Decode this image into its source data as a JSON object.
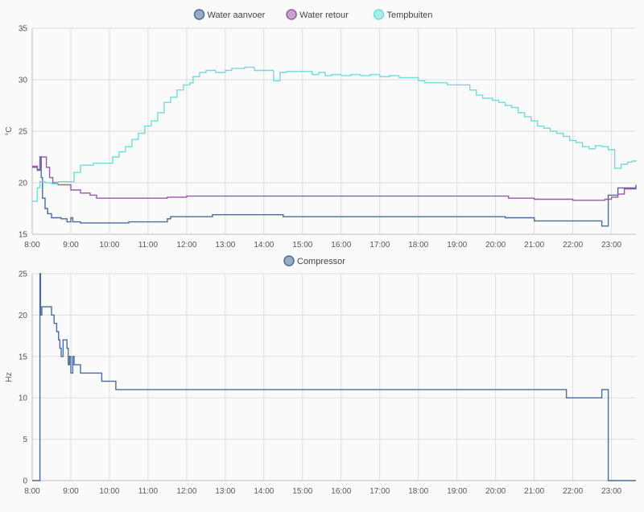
{
  "chart_data": [
    {
      "type": "line",
      "step": true,
      "ylabel": "°C",
      "ylim": [
        15,
        35
      ],
      "yticks": [
        "15",
        "20",
        "25",
        "30",
        "35"
      ],
      "xlim": [
        "08:00",
        "23:38"
      ],
      "xticks": [
        "8:00",
        "9:00",
        "10:00",
        "11:00",
        "12:00",
        "13:00",
        "14:00",
        "15:00",
        "16:00",
        "17:00",
        "18:00",
        "19:00",
        "20:00",
        "21:00",
        "22:00",
        "23:00"
      ],
      "grid": true,
      "legend_position": "top-center",
      "series": [
        {
          "name": "Water aanvoer",
          "color": "#4a6c96",
          "points": [
            [
              "08:00",
              21.5
            ],
            [
              "08:08",
              21.2
            ],
            [
              "08:12",
              22.5
            ],
            [
              "08:14",
              20.5
            ],
            [
              "08:16",
              18.5
            ],
            [
              "08:20",
              17.5
            ],
            [
              "08:24",
              17.0
            ],
            [
              "08:30",
              16.6
            ],
            [
              "08:45",
              16.5
            ],
            [
              "08:54",
              16.2
            ],
            [
              "09:00",
              16.6
            ],
            [
              "09:03",
              16.2
            ],
            [
              "09:15",
              16.1
            ],
            [
              "10:30",
              16.2
            ],
            [
              "11:30",
              16.5
            ],
            [
              "11:35",
              16.7
            ],
            [
              "12:00",
              16.7
            ],
            [
              "12:40",
              16.9
            ],
            [
              "13:00",
              16.9
            ],
            [
              "14:00",
              16.9
            ],
            [
              "14:30",
              16.7
            ],
            [
              "16:00",
              16.7
            ],
            [
              "19:30",
              16.7
            ],
            [
              "20:15",
              16.6
            ],
            [
              "21:00",
              16.3
            ],
            [
              "22:00",
              16.3
            ],
            [
              "22:45",
              15.8
            ],
            [
              "22:55",
              18.8
            ],
            [
              "23:10",
              19.5
            ],
            [
              "23:38",
              19.8
            ]
          ]
        },
        {
          "name": "Water retour",
          "color": "#9b59a6",
          "points": [
            [
              "08:00",
              21.6
            ],
            [
              "08:08",
              21.3
            ],
            [
              "08:12",
              22.5
            ],
            [
              "08:18",
              22.5
            ],
            [
              "08:22",
              21.5
            ],
            [
              "08:27",
              20.5
            ],
            [
              "08:32",
              20.0
            ],
            [
              "08:40",
              19.8
            ],
            [
              "09:00",
              19.3
            ],
            [
              "09:15",
              19.0
            ],
            [
              "09:30",
              18.8
            ],
            [
              "09:40",
              18.5
            ],
            [
              "10:30",
              18.5
            ],
            [
              "11:00",
              18.5
            ],
            [
              "11:30",
              18.6
            ],
            [
              "12:00",
              18.7
            ],
            [
              "13:00",
              18.7
            ],
            [
              "20:00",
              18.7
            ],
            [
              "20:20",
              18.5
            ],
            [
              "21:00",
              18.4
            ],
            [
              "22:00",
              18.3
            ],
            [
              "22:50",
              18.4
            ],
            [
              "23:00",
              18.6
            ],
            [
              "23:10",
              18.9
            ],
            [
              "23:20",
              19.4
            ],
            [
              "23:38",
              19.6
            ]
          ]
        },
        {
          "name": "Tempbuiten",
          "color": "#72dcd8",
          "points": [
            [
              "08:00",
              18.2
            ],
            [
              "08:08",
              19.5
            ],
            [
              "08:12",
              20.1
            ],
            [
              "08:20",
              20.0
            ],
            [
              "08:30",
              19.9
            ],
            [
              "08:40",
              20.1
            ],
            [
              "08:50",
              20.1
            ],
            [
              "09:05",
              21.0
            ],
            [
              "09:15",
              21.7
            ],
            [
              "09:35",
              21.9
            ],
            [
              "09:55",
              21.9
            ],
            [
              "10:05",
              22.5
            ],
            [
              "10:15",
              23.0
            ],
            [
              "10:25",
              23.5
            ],
            [
              "10:35",
              24.2
            ],
            [
              "10:45",
              24.8
            ],
            [
              "10:55",
              25.5
            ],
            [
              "11:05",
              26.0
            ],
            [
              "11:15",
              26.8
            ],
            [
              "11:25",
              27.8
            ],
            [
              "11:35",
              28.3
            ],
            [
              "11:45",
              29.0
            ],
            [
              "11:55",
              29.5
            ],
            [
              "12:05",
              29.7
            ],
            [
              "12:10",
              30.3
            ],
            [
              "12:20",
              30.7
            ],
            [
              "12:30",
              30.9
            ],
            [
              "12:45",
              30.7
            ],
            [
              "13:00",
              30.9
            ],
            [
              "13:10",
              31.1
            ],
            [
              "13:20",
              31.1
            ],
            [
              "13:30",
              31.2
            ],
            [
              "13:45",
              30.9
            ],
            [
              "14:00",
              30.9
            ],
            [
              "14:15",
              29.9
            ],
            [
              "14:25",
              30.7
            ],
            [
              "14:35",
              30.8
            ],
            [
              "15:00",
              30.8
            ],
            [
              "15:15",
              30.5
            ],
            [
              "15:25",
              30.7
            ],
            [
              "15:35",
              30.4
            ],
            [
              "15:45",
              30.5
            ],
            [
              "16:00",
              30.4
            ],
            [
              "16:15",
              30.5
            ],
            [
              "16:30",
              30.4
            ],
            [
              "16:45",
              30.5
            ],
            [
              "17:00",
              30.3
            ],
            [
              "17:15",
              30.4
            ],
            [
              "17:30",
              30.2
            ],
            [
              "17:45",
              30.2
            ],
            [
              "18:00",
              29.9
            ],
            [
              "18:10",
              29.7
            ],
            [
              "18:30",
              29.7
            ],
            [
              "18:45",
              29.5
            ],
            [
              "19:00",
              29.5
            ],
            [
              "19:20",
              29.0
            ],
            [
              "19:30",
              28.5
            ],
            [
              "19:40",
              28.2
            ],
            [
              "19:55",
              28.0
            ],
            [
              "20:05",
              27.8
            ],
            [
              "20:15",
              27.5
            ],
            [
              "20:25",
              27.3
            ],
            [
              "20:35",
              26.8
            ],
            [
              "20:45",
              26.4
            ],
            [
              "20:55",
              26.0
            ],
            [
              "21:05",
              25.5
            ],
            [
              "21:15",
              25.3
            ],
            [
              "21:25",
              25.0
            ],
            [
              "21:35",
              24.8
            ],
            [
              "21:45",
              24.5
            ],
            [
              "21:55",
              24.1
            ],
            [
              "22:05",
              23.9
            ],
            [
              "22:15",
              23.5
            ],
            [
              "22:25",
              23.3
            ],
            [
              "22:35",
              23.6
            ],
            [
              "22:45",
              23.5
            ],
            [
              "22:55",
              23.2
            ],
            [
              "23:05",
              21.4
            ],
            [
              "23:15",
              21.8
            ],
            [
              "23:25",
              22.0
            ],
            [
              "23:32",
              22.1
            ],
            [
              "23:38",
              22.2
            ]
          ]
        }
      ]
    },
    {
      "type": "line",
      "step": true,
      "ylabel": "Hz",
      "ylim": [
        0,
        25
      ],
      "yticks": [
        "0",
        "5",
        "10",
        "15",
        "20",
        "25"
      ],
      "xlim": [
        "08:00",
        "23:38"
      ],
      "xticks": [
        "8:00",
        "9:00",
        "10:00",
        "11:00",
        "12:00",
        "13:00",
        "14:00",
        "15:00",
        "16:00",
        "17:00",
        "18:00",
        "19:00",
        "20:00",
        "21:00",
        "22:00",
        "23:00"
      ],
      "grid": true,
      "legend_position": "top-center",
      "series": [
        {
          "name": "Compressor",
          "color": "#4a6c96",
          "points": [
            [
              "08:00",
              0
            ],
            [
              "08:12",
              0
            ],
            [
              "08:12",
              25
            ],
            [
              "08:13",
              20
            ],
            [
              "08:15",
              21
            ],
            [
              "08:30",
              20
            ],
            [
              "08:34",
              19
            ],
            [
              "08:38",
              18
            ],
            [
              "08:41",
              17
            ],
            [
              "08:43",
              16
            ],
            [
              "08:45",
              15
            ],
            [
              "08:48",
              17
            ],
            [
              "08:54",
              16
            ],
            [
              "08:56",
              14
            ],
            [
              "08:58",
              15
            ],
            [
              "09:00",
              13
            ],
            [
              "09:03",
              15
            ],
            [
              "09:05",
              14
            ],
            [
              "09:10",
              14
            ],
            [
              "09:15",
              13
            ],
            [
              "09:35",
              13
            ],
            [
              "09:48",
              12
            ],
            [
              "10:10",
              11
            ],
            [
              "21:50",
              11
            ],
            [
              "21:50",
              10
            ],
            [
              "22:45",
              10
            ],
            [
              "22:45",
              11
            ],
            [
              "22:55",
              11
            ],
            [
              "22:55",
              0
            ],
            [
              "23:38",
              0
            ]
          ]
        }
      ]
    }
  ]
}
